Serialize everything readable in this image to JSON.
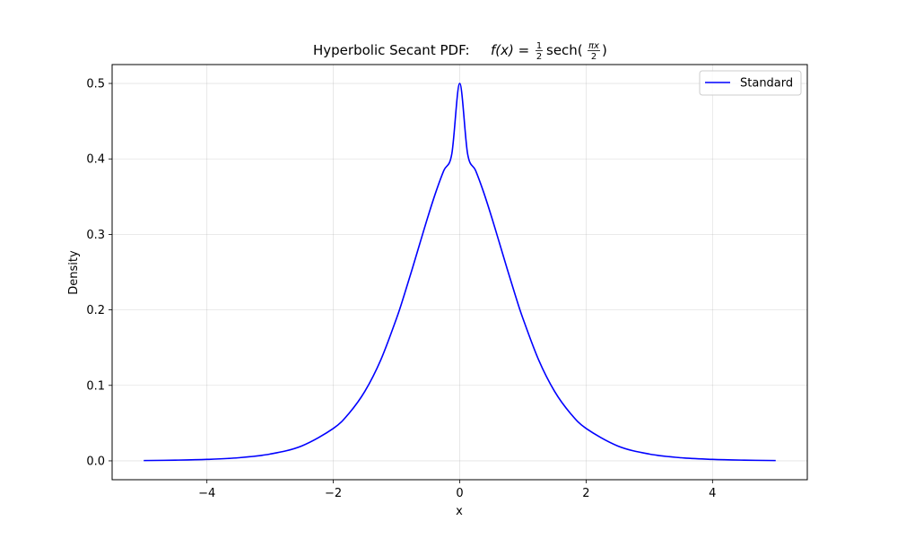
{
  "chart_data": {
    "type": "line",
    "title": {
      "prefix": "Hyperbolic Secant PDF: ",
      "math_lhs": "f(x) = ",
      "one": "1",
      "two": "2",
      "sech": "sech(",
      "pix": "πx",
      "close": ")"
    },
    "xlabel": "x",
    "ylabel": "Density",
    "xlim": [
      -5.5,
      5.5
    ],
    "ylim": [
      -0.025,
      0.525
    ],
    "xticks": [
      -4,
      -2,
      0,
      2,
      4
    ],
    "xtick_labels": [
      "−4",
      "−2",
      "0",
      "2",
      "4"
    ],
    "yticks": [
      0.0,
      0.1,
      0.2,
      0.3,
      0.4,
      0.5
    ],
    "ytick_labels": [
      "0.0",
      "0.1",
      "0.2",
      "0.3",
      "0.4",
      "0.5"
    ],
    "grid": true,
    "legend_position": "top-right",
    "series": [
      {
        "name": "Standard",
        "color": "#0000ff",
        "x": [
          -5,
          -4.5,
          -4,
          -3.5,
          -3,
          -2.5,
          -2,
          -1.75,
          -1.5,
          -1.25,
          -1,
          -0.875,
          -0.75,
          -0.625,
          -0.5,
          -0.375,
          -0.25,
          -0.125,
          0,
          0.125,
          0.25,
          0.375,
          0.5,
          0.625,
          0.75,
          0.875,
          1,
          1.25,
          1.5,
          1.75,
          2,
          2.5,
          3,
          3.5,
          4,
          4.5,
          5
        ],
        "y": [
          0.0004,
          0.0009,
          0.0019,
          0.0041,
          0.009,
          0.0197,
          0.0429,
          0.0631,
          0.0922,
          0.1335,
          0.1887,
          0.2206,
          0.2546,
          0.2896,
          0.3243,
          0.3567,
          0.3849,
          0.4067,
          0.5,
          0.4067,
          0.3849,
          0.3567,
          0.3243,
          0.2896,
          0.2546,
          0.2206,
          0.1887,
          0.1335,
          0.0922,
          0.0631,
          0.0429,
          0.0197,
          0.009,
          0.0041,
          0.0019,
          0.0009,
          0.0004
        ]
      }
    ]
  }
}
